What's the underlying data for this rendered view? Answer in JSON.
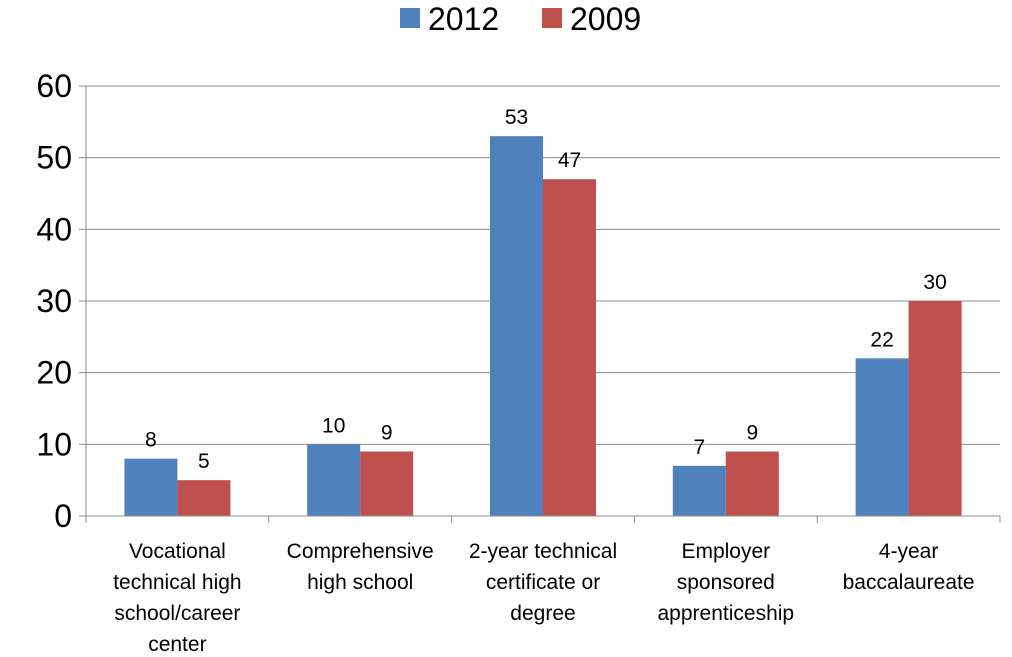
{
  "chart_data": {
    "type": "bar",
    "title": "",
    "xlabel": "",
    "ylabel": "",
    "ylim": [
      0,
      60
    ],
    "yticks": [
      0,
      10,
      20,
      30,
      40,
      50,
      60
    ],
    "grid": true,
    "legend": "top",
    "categories": [
      [
        "Vocational",
        "technical high",
        "school/career",
        "center"
      ],
      [
        "Comprehensive",
        "high school"
      ],
      [
        "2-year technical",
        "certificate or",
        "degree"
      ],
      [
        "Employer",
        "sponsored",
        "apprenticeship"
      ],
      [
        "4-year",
        "baccalaureate"
      ]
    ],
    "series": [
      {
        "name": "2012",
        "color": "#4f81bd",
        "values": [
          8,
          10,
          53,
          7,
          22
        ]
      },
      {
        "name": "2009",
        "color": "#c0504d",
        "values": [
          5,
          9,
          47,
          9,
          30
        ]
      }
    ]
  }
}
